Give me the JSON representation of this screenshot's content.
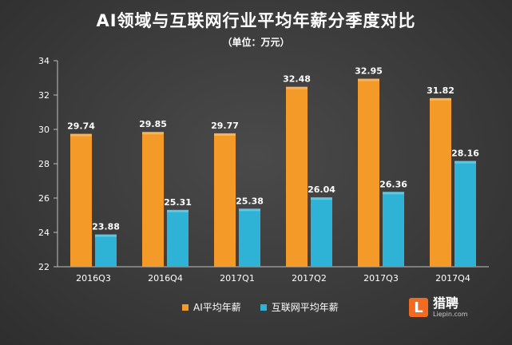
{
  "chart_data": {
    "type": "bar",
    "title": "AI领域与互联网行业平均年薪分季度对比",
    "subtitle": "（单位：万元）",
    "categories": [
      "2016Q3",
      "2016Q4",
      "2017Q1",
      "2017Q2",
      "2017Q3",
      "2017Q4"
    ],
    "series": [
      {
        "name": "AI平均年薪",
        "values": [
          29.74,
          29.85,
          29.77,
          32.48,
          32.95,
          31.82
        ],
        "color": "#f39a28"
      },
      {
        "name": "互联网平均年薪",
        "values": [
          23.88,
          25.31,
          25.38,
          26.04,
          26.36,
          28.16
        ],
        "color": "#2eb3d6"
      }
    ],
    "y_ticks": [
      "22",
      "24",
      "26",
      "28",
      "30",
      "32",
      "34"
    ],
    "ylim": [
      22,
      34
    ],
    "grid": false,
    "legend_position": "bottom"
  },
  "logo": {
    "name": "猎聘",
    "mark": "L",
    "url": "Liepin.com",
    "color": "#f26b21"
  }
}
